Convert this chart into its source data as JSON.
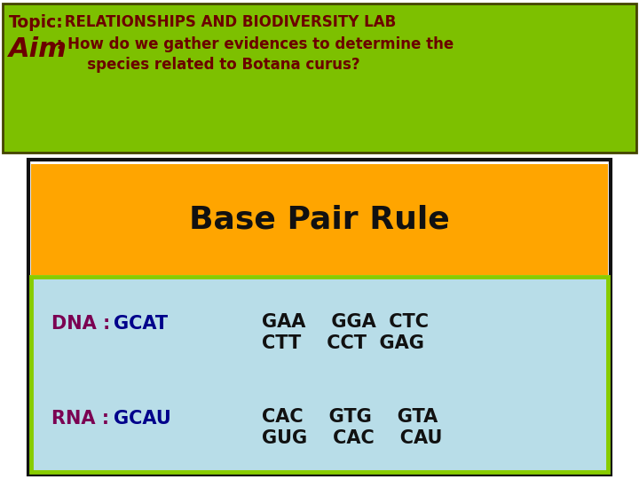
{
  "topic_label": "Topic:",
  "topic_text": " RELATIONSHIPS AND BIODIVERSITY LAB",
  "aim_label": "Aim",
  "aim_text": " : How do we gather evidences to determine the",
  "aim_text2": "       species related to Botana curus?",
  "header_bg": "#7DC000",
  "header_border": "#444400",
  "header_text_color": "#6B0000",
  "orange_box_color": "#FFA500",
  "orange_box_border": "#111111",
  "base_pair_rule_text": "Base Pair Rule",
  "base_pair_rule_color": "#111111",
  "light_blue_bg": "#B8DDE8",
  "light_blue_border": "#88CC00",
  "dna_prefix_color": "#7B0052",
  "dna_suffix_color": "#00008B",
  "rna_prefix_color": "#7B0052",
  "rna_suffix_color": "#00008B",
  "codon_color": "#111111",
  "fig_bg": "#FFFFFF",
  "outer_border_color": "#444400",
  "black_border": "#111111"
}
